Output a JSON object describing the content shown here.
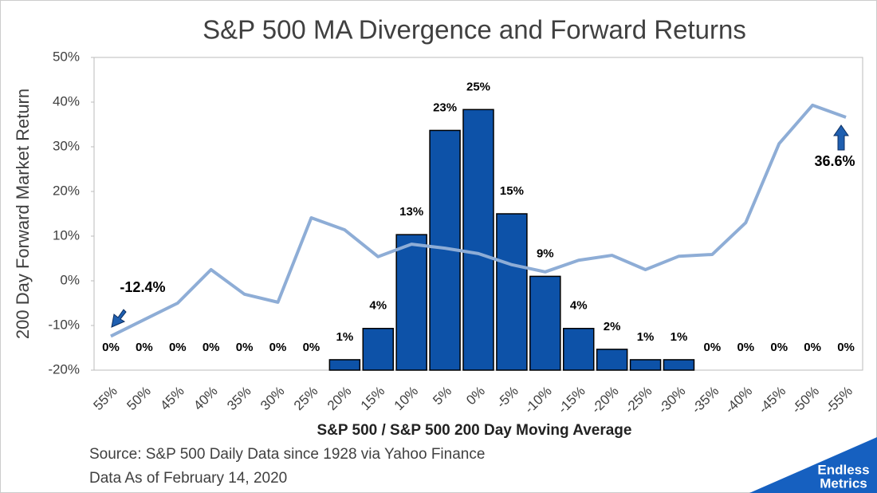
{
  "chart_data": {
    "type": "bar-line",
    "title": "S&P 500 MA Divergence and Forward Returns",
    "y_label": "200 Day Forward Market Return",
    "x_label": "S&P 500 / S&P 500 200 Day Moving Average",
    "source": "Source: S&P 500 Daily Data since 1928 via Yahoo Finance",
    "as_of": "Data As of February 14, 2020",
    "logo": [
      "Endless",
      "Metrics"
    ],
    "categories": [
      "55%",
      "50%",
      "45%",
      "40%",
      "35%",
      "30%",
      "25%",
      "20%",
      "15%",
      "10%",
      "5%",
      "0%",
      "-5%",
      "-10%",
      "-15%",
      "-20%",
      "-25%",
      "-30%",
      "-35%",
      "-40%",
      "-45%",
      "-50%",
      "-55%"
    ],
    "ylim": [
      -20,
      50
    ],
    "yticks": [
      {
        "value": -20,
        "label": "-20%"
      },
      {
        "value": -10,
        "label": "-10%"
      },
      {
        "value": 0,
        "label": "0%"
      },
      {
        "value": 10,
        "label": "10%"
      },
      {
        "value": 20,
        "label": "20%"
      },
      {
        "value": 30,
        "label": "30%"
      },
      {
        "value": 40,
        "label": "40%"
      },
      {
        "value": 50,
        "label": "50%"
      }
    ],
    "y2lim": [
      0,
      30
    ],
    "series": [
      {
        "type": "bar",
        "axis": "y2",
        "color": "#0d52a8",
        "values": [
          0,
          0,
          0,
          0,
          0,
          0,
          0,
          1,
          4,
          13,
          23,
          25,
          15,
          9,
          4,
          2,
          1,
          1,
          0,
          0,
          0,
          0,
          0
        ],
        "value_labels": [
          "0%",
          "0%",
          "0%",
          "0%",
          "0%",
          "0%",
          "0%",
          "1%",
          "4%",
          "13%",
          "23%",
          "25%",
          "15%",
          "9%",
          "4%",
          "2%",
          "1%",
          "1%",
          "0%",
          "0%",
          "0%",
          "0%",
          "0%"
        ]
      },
      {
        "type": "line",
        "color": "#8eadd6",
        "values": [
          -12.4,
          -8.7,
          -5,
          2.5,
          -3,
          -4.8,
          14.1,
          11.4,
          5.4,
          8.2,
          7.3,
          6.1,
          3.6,
          2,
          4.6,
          5.7,
          2.5,
          5.5,
          5.9,
          13,
          30.7,
          39.3,
          36.6
        ],
        "value_labels": [
          "-12.4%",
          null,
          null,
          null,
          null,
          null,
          null,
          null,
          null,
          null,
          null,
          null,
          null,
          null,
          null,
          null,
          null,
          null,
          null,
          null,
          null,
          null,
          "36.6%"
        ]
      }
    ]
  }
}
